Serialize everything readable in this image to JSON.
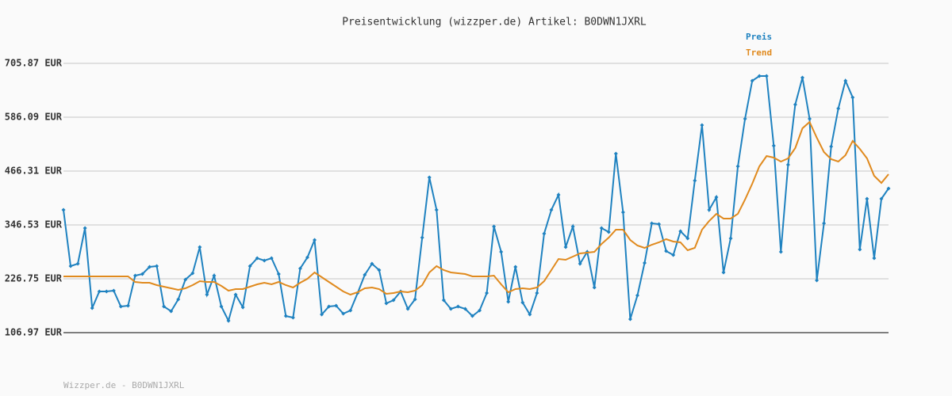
{
  "chart_data": {
    "type": "line",
    "title": "Preisentwicklung (wizzper.de) Artikel: B0DWN1JXRL",
    "footer": "Wizzper.de - B0DWN1JXRL",
    "ylim": [
      106.97,
      705.87
    ],
    "yticks": [
      {
        "value": 106.97,
        "label": "106.97 EUR"
      },
      {
        "value": 226.75,
        "label": "226.75 EUR"
      },
      {
        "value": 346.53,
        "label": "346.53 EUR"
      },
      {
        "value": 466.31,
        "label": "466.31 EUR"
      },
      {
        "value": 586.09,
        "label": "586.09 EUR"
      },
      {
        "value": 705.87,
        "label": "705.87 EUR"
      }
    ],
    "grid": true,
    "legend": "top-right",
    "series": [
      {
        "name": "Preis",
        "color": "#1f82c0",
        "markers": true,
        "values": [
          380,
          254.9,
          260.2,
          339.5,
          161.6,
          198.5,
          198.5,
          200.3,
          165.1,
          166.8,
          233.8,
          237.3,
          253.2,
          254.9,
          165.1,
          154.5,
          180.9,
          225,
          239.1,
          297.2,
          191.5,
          233.8,
          165.1,
          133.4,
          191.5,
          163.3,
          254.9,
          272.5,
          267.2,
          272.5,
          237.3,
          143.9,
          140.4,
          249.6,
          274.3,
          313,
          147.5,
          165.1,
          166.8,
          149.2,
          156.3,
          195,
          235.5,
          260.2,
          246.1,
          172.1,
          179.2,
          198.5,
          159.8,
          180.9,
          318.3,
          452.2,
          380,
          179.2,
          159.8,
          165.1,
          159.8,
          143.9,
          156.3,
          195,
          343,
          286.6,
          175.7,
          253.2,
          173.9,
          147.5,
          195,
          327.2,
          380,
          413.5,
          297.2,
          343,
          260.2,
          286.6,
          207.4,
          339.5,
          330.7,
          505.1,
          374.7,
          136.9,
          189.7,
          262,
          350,
          348.3,
          288.4,
          279.6,
          332.4,
          316.6,
          445.2,
          568.5,
          380,
          408.2,
          240.8,
          316.6,
          476.9,
          582.6,
          667.1,
          677.7,
          677.7,
          522.7,
          286.6,
          480.4,
          614.3,
          674.2,
          582.6,
          223.2,
          350,
          520.9,
          605.5,
          667.1,
          630.1,
          291.9,
          404.7,
          272.5,
          404.7,
          427.5
        ]
      },
      {
        "name": "Trend",
        "color": "#e08a1e",
        "markers": false,
        "values": [
          232,
          232,
          232,
          232,
          232,
          232,
          232,
          232,
          232,
          232,
          219.7,
          217.9,
          217.9,
          212.7,
          209.1,
          205.6,
          202.1,
          205.6,
          212.7,
          221.5,
          219.7,
          219.7,
          210.9,
          200.3,
          203.8,
          203.8,
          209.1,
          214.4,
          217.9,
          214.4,
          219.7,
          212.7,
          207.4,
          217.9,
          226.7,
          240.8,
          230.3,
          219.7,
          209.1,
          198.5,
          191.5,
          196.8,
          205.6,
          207.4,
          203.8,
          193.3,
          195,
          198.5,
          196.8,
          200.3,
          212.7,
          240.8,
          254.9,
          246.1,
          240.8,
          239.1,
          237.3,
          232,
          232,
          232,
          233.8,
          214.4,
          196.8,
          203.8,
          205.6,
          203.8,
          207.4,
          221.5,
          246.1,
          270.8,
          269,
          276.1,
          283.1,
          284.9,
          286.6,
          304.2,
          318.3,
          336,
          336,
          313,
          300.7,
          295.4,
          302.5,
          307.8,
          314.8,
          309.5,
          307.8,
          290.2,
          295.4,
          336,
          355.3,
          371.2,
          360.6,
          360.6,
          371.2,
          402.9,
          438.1,
          476.9,
          499.8,
          496.3,
          487.4,
          494.5,
          517.4,
          561.4,
          575.5,
          540.3,
          508.6,
          492.7,
          487.4,
          501.5,
          533.3,
          515.6,
          494.5,
          455.7,
          439.9,
          459.3
        ]
      }
    ]
  }
}
